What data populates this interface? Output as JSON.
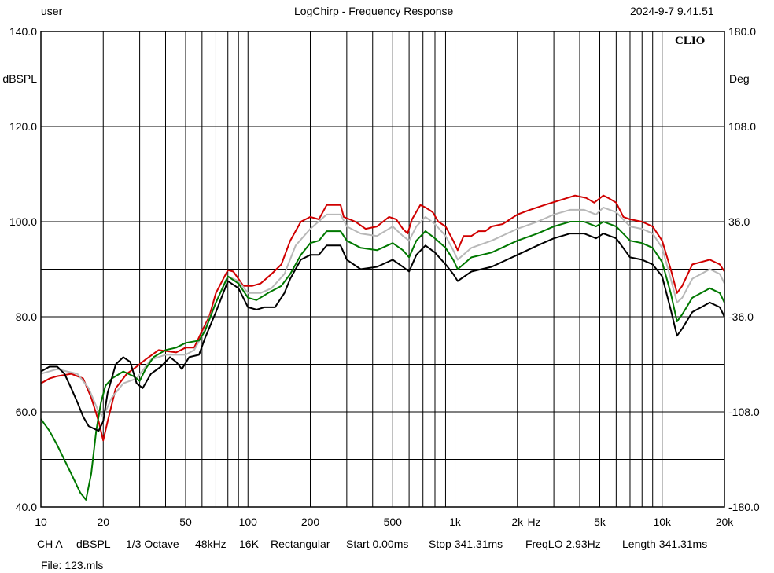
{
  "header": {
    "user": "user",
    "title": "LogChirp - Frequency Response",
    "datetime": "2024-9-7 9.41.51"
  },
  "brand": "CLIO",
  "footer": {
    "channel": "CH A",
    "unit": "dBSPL",
    "smoothing": "1/3 Octave",
    "sample_rate": "48kHz",
    "size": "16K",
    "window": "Rectangular",
    "start": "Start 0.00ms",
    "stop": "Stop 341.31ms",
    "freqlo": "FreqLO 2.93Hz",
    "length": "Length 341.31ms",
    "file": "File: 123.mls"
  },
  "chart_data": {
    "type": "line",
    "xscale": "log",
    "xlim": [
      10,
      20000
    ],
    "ylim": [
      40,
      140
    ],
    "y2lim": [
      -180,
      180
    ],
    "ylabel": "dBSPL",
    "y2label": "Deg",
    "xunit": "Hz",
    "grid": true,
    "x_ticks": [
      {
        "v": 10,
        "label": "10"
      },
      {
        "v": 20,
        "label": "20"
      },
      {
        "v": 50,
        "label": "50"
      },
      {
        "v": 100,
        "label": "100"
      },
      {
        "v": 200,
        "label": "200"
      },
      {
        "v": 500,
        "label": "500"
      },
      {
        "v": 1000,
        "label": "1k"
      },
      {
        "v": 2000,
        "label": "2k"
      },
      {
        "v": 5000,
        "label": "5k"
      },
      {
        "v": 10000,
        "label": "10k"
      },
      {
        "v": 20000,
        "label": "20k"
      }
    ],
    "y_ticks": [
      {
        "v": 140,
        "label": "140.0"
      },
      {
        "v": 120,
        "label": "120.0"
      },
      {
        "v": 100,
        "label": "100.0"
      },
      {
        "v": 80,
        "label": "80.0"
      },
      {
        "v": 60,
        "label": "60.0"
      },
      {
        "v": 40,
        "label": "40.0"
      }
    ],
    "y2_ticks": [
      {
        "v": 180,
        "label": "180.0"
      },
      {
        "v": 108,
        "label": "108.0"
      },
      {
        "v": 36,
        "label": "36.0"
      },
      {
        "v": -36,
        "label": "-36.0"
      },
      {
        "v": -108,
        "label": "-108.0"
      },
      {
        "v": -180,
        "label": "-180.0"
      }
    ],
    "series": [
      {
        "color": "#d00000",
        "points": [
          [
            10,
            66
          ],
          [
            11,
            67
          ],
          [
            12,
            67.5
          ],
          [
            14,
            68
          ],
          [
            16,
            67
          ],
          [
            17.5,
            63
          ],
          [
            19,
            58
          ],
          [
            20,
            54
          ],
          [
            21,
            58
          ],
          [
            23,
            65
          ],
          [
            26,
            68
          ],
          [
            29,
            69.5
          ],
          [
            32,
            71
          ],
          [
            37,
            73
          ],
          [
            45,
            72.5
          ],
          [
            50,
            73.5
          ],
          [
            55,
            73.5
          ],
          [
            60,
            77
          ],
          [
            65,
            80
          ],
          [
            70,
            85
          ],
          [
            80,
            89.8
          ],
          [
            85,
            89.5
          ],
          [
            95,
            86.5
          ],
          [
            105,
            86.5
          ],
          [
            115,
            87
          ],
          [
            130,
            89
          ],
          [
            145,
            91
          ],
          [
            160,
            96
          ],
          [
            180,
            100
          ],
          [
            200,
            101
          ],
          [
            220,
            100.5
          ],
          [
            240,
            103.5
          ],
          [
            280,
            103.5
          ],
          [
            290,
            101
          ],
          [
            330,
            100
          ],
          [
            370,
            98.5
          ],
          [
            420,
            99
          ],
          [
            480,
            101
          ],
          [
            520,
            100.5
          ],
          [
            560,
            98.5
          ],
          [
            590,
            97.5
          ],
          [
            620,
            100.5
          ],
          [
            680,
            103.5
          ],
          [
            720,
            103
          ],
          [
            780,
            102
          ],
          [
            830,
            100
          ],
          [
            900,
            99
          ],
          [
            980,
            96
          ],
          [
            1030,
            94
          ],
          [
            1100,
            97
          ],
          [
            1200,
            97
          ],
          [
            1300,
            98
          ],
          [
            1400,
            98
          ],
          [
            1500,
            99
          ],
          [
            1700,
            99.5
          ],
          [
            2000,
            101.5
          ],
          [
            2300,
            102.5
          ],
          [
            2700,
            103.5
          ],
          [
            3200,
            104.5
          ],
          [
            3800,
            105.5
          ],
          [
            4300,
            105
          ],
          [
            4700,
            104
          ],
          [
            5200,
            105.5
          ],
          [
            5500,
            105
          ],
          [
            6000,
            104
          ],
          [
            6500,
            101
          ],
          [
            7000,
            100.5
          ],
          [
            8000,
            100
          ],
          [
            9000,
            99
          ],
          [
            10000,
            96
          ],
          [
            11000,
            90
          ],
          [
            11800,
            85
          ],
          [
            12500,
            86.5
          ],
          [
            14000,
            91
          ],
          [
            17000,
            92
          ],
          [
            19000,
            91
          ],
          [
            20000,
            89.5
          ]
        ]
      },
      {
        "color": "#b8b8b8",
        "points": [
          [
            10,
            68
          ],
          [
            12,
            69
          ],
          [
            15,
            68
          ],
          [
            17,
            65
          ],
          [
            19,
            60
          ],
          [
            20,
            59
          ],
          [
            22,
            63
          ],
          [
            25,
            66
          ],
          [
            29,
            67
          ],
          [
            34,
            71
          ],
          [
            40,
            72
          ],
          [
            45,
            72
          ],
          [
            50,
            72
          ],
          [
            55,
            73
          ],
          [
            60,
            76
          ],
          [
            70,
            83
          ],
          [
            80,
            88.5
          ],
          [
            90,
            87.5
          ],
          [
            100,
            85
          ],
          [
            115,
            85
          ],
          [
            130,
            86
          ],
          [
            150,
            89
          ],
          [
            170,
            95
          ],
          [
            200,
            98.5
          ],
          [
            240,
            101.5
          ],
          [
            280,
            101.5
          ],
          [
            300,
            99
          ],
          [
            350,
            97.5
          ],
          [
            420,
            97
          ],
          [
            500,
            99
          ],
          [
            560,
            97
          ],
          [
            600,
            96
          ],
          [
            650,
            99
          ],
          [
            720,
            101
          ],
          [
            800,
            99.5
          ],
          [
            900,
            97
          ],
          [
            980,
            94
          ],
          [
            1030,
            92
          ],
          [
            1200,
            94.5
          ],
          [
            1500,
            96
          ],
          [
            2000,
            98.5
          ],
          [
            2500,
            100
          ],
          [
            3000,
            101.5
          ],
          [
            3600,
            102.5
          ],
          [
            4200,
            102.5
          ],
          [
            4800,
            101.5
          ],
          [
            5200,
            103
          ],
          [
            6000,
            102
          ],
          [
            7000,
            99
          ],
          [
            8000,
            98.5
          ],
          [
            9000,
            97.5
          ],
          [
            10000,
            94.5
          ],
          [
            11000,
            88
          ],
          [
            11800,
            83
          ],
          [
            12500,
            84
          ],
          [
            14000,
            88
          ],
          [
            17000,
            90
          ],
          [
            19000,
            89
          ],
          [
            20000,
            87
          ]
        ]
      },
      {
        "color": "#007800",
        "points": [
          [
            10,
            58.5
          ],
          [
            11,
            56
          ],
          [
            12,
            53
          ],
          [
            14,
            47
          ],
          [
            15.5,
            43
          ],
          [
            16.5,
            41.5
          ],
          [
            17.5,
            47
          ],
          [
            18.5,
            56
          ],
          [
            19.5,
            62
          ],
          [
            20.5,
            65.5
          ],
          [
            22,
            67
          ],
          [
            25,
            68.5
          ],
          [
            28,
            67.5
          ],
          [
            30,
            66.5
          ],
          [
            32,
            69
          ],
          [
            35,
            71.5
          ],
          [
            40,
            73
          ],
          [
            45,
            73.5
          ],
          [
            50,
            74.5
          ],
          [
            58,
            75
          ],
          [
            62,
            77
          ],
          [
            70,
            83
          ],
          [
            80,
            88.5
          ],
          [
            90,
            87
          ],
          [
            100,
            84
          ],
          [
            110,
            83.5
          ],
          [
            125,
            85
          ],
          [
            145,
            86.5
          ],
          [
            160,
            89
          ],
          [
            180,
            93
          ],
          [
            200,
            95.5
          ],
          [
            220,
            96
          ],
          [
            240,
            98
          ],
          [
            280,
            98
          ],
          [
            300,
            96
          ],
          [
            350,
            94.5
          ],
          [
            420,
            94
          ],
          [
            500,
            95.5
          ],
          [
            560,
            94
          ],
          [
            600,
            92.5
          ],
          [
            650,
            96
          ],
          [
            720,
            98
          ],
          [
            800,
            96.5
          ],
          [
            900,
            94.5
          ],
          [
            980,
            92
          ],
          [
            1030,
            90
          ],
          [
            1200,
            92.5
          ],
          [
            1500,
            93.5
          ],
          [
            2000,
            96
          ],
          [
            2500,
            97.5
          ],
          [
            3000,
            99
          ],
          [
            3600,
            100
          ],
          [
            4200,
            100
          ],
          [
            4800,
            99
          ],
          [
            5200,
            100
          ],
          [
            6000,
            99
          ],
          [
            7000,
            96
          ],
          [
            8000,
            95.5
          ],
          [
            9000,
            94.5
          ],
          [
            10000,
            91.5
          ],
          [
            11000,
            85
          ],
          [
            11800,
            79
          ],
          [
            12500,
            80.5
          ],
          [
            14000,
            84
          ],
          [
            17000,
            86
          ],
          [
            19000,
            85
          ],
          [
            20000,
            83
          ]
        ]
      },
      {
        "color": "#000000",
        "points": [
          [
            10,
            68.5
          ],
          [
            11,
            69.5
          ],
          [
            12,
            69.5
          ],
          [
            13,
            68
          ],
          [
            14,
            65
          ],
          [
            15,
            62
          ],
          [
            16,
            59
          ],
          [
            17,
            57
          ],
          [
            19,
            56
          ],
          [
            20,
            58
          ],
          [
            21,
            64
          ],
          [
            23,
            70
          ],
          [
            25,
            71.5
          ],
          [
            27,
            70.5
          ],
          [
            29,
            66
          ],
          [
            31,
            65
          ],
          [
            34,
            68
          ],
          [
            38,
            69.5
          ],
          [
            42,
            71.5
          ],
          [
            45,
            70.5
          ],
          [
            48,
            69
          ],
          [
            52,
            71.5
          ],
          [
            58,
            72
          ],
          [
            62,
            75.5
          ],
          [
            70,
            81
          ],
          [
            80,
            87.5
          ],
          [
            90,
            86
          ],
          [
            100,
            82
          ],
          [
            110,
            81.5
          ],
          [
            120,
            82
          ],
          [
            135,
            82
          ],
          [
            150,
            85
          ],
          [
            160,
            88
          ],
          [
            180,
            92
          ],
          [
            200,
            93
          ],
          [
            220,
            93
          ],
          [
            240,
            95
          ],
          [
            280,
            95
          ],
          [
            300,
            92
          ],
          [
            350,
            90
          ],
          [
            420,
            90.5
          ],
          [
            500,
            92
          ],
          [
            560,
            90.5
          ],
          [
            600,
            89.5
          ],
          [
            650,
            93
          ],
          [
            720,
            95
          ],
          [
            800,
            93.5
          ],
          [
            900,
            91
          ],
          [
            980,
            89
          ],
          [
            1030,
            87.5
          ],
          [
            1200,
            89.5
          ],
          [
            1500,
            90.5
          ],
          [
            2000,
            93
          ],
          [
            2500,
            95
          ],
          [
            3000,
            96.5
          ],
          [
            3600,
            97.5
          ],
          [
            4200,
            97.5
          ],
          [
            4800,
            96.5
          ],
          [
            5200,
            97.5
          ],
          [
            6000,
            96.5
          ],
          [
            7000,
            92.5
          ],
          [
            8000,
            92
          ],
          [
            9000,
            91
          ],
          [
            10000,
            88.5
          ],
          [
            11000,
            81.5
          ],
          [
            11800,
            76
          ],
          [
            12500,
            77.5
          ],
          [
            14000,
            81
          ],
          [
            17000,
            83
          ],
          [
            19000,
            82
          ],
          [
            20000,
            80
          ]
        ]
      }
    ]
  }
}
